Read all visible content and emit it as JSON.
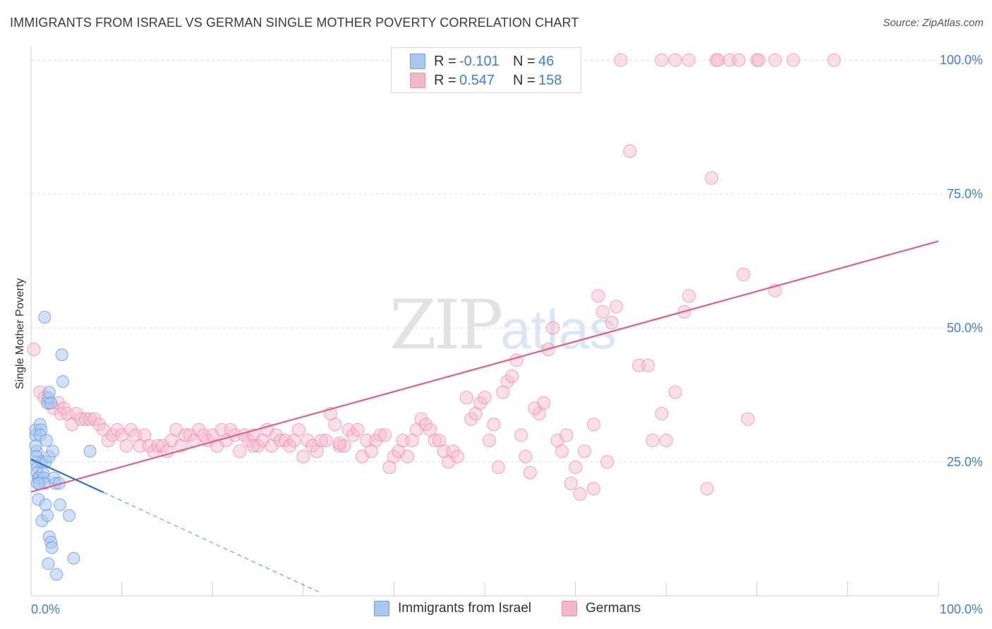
{
  "header": {
    "title": "IMMIGRANTS FROM ISRAEL VS GERMAN SINGLE MOTHER POVERTY CORRELATION CHART",
    "source": "Source: ZipAtlas.com"
  },
  "watermark": {
    "zip": "ZIP",
    "atlas": "atlas"
  },
  "legend": {
    "rows": [
      {
        "r_label": "R =",
        "r_value": "-0.101",
        "n_label": "N =",
        "n_value": "46",
        "color": "#a9c8f0"
      },
      {
        "r_label": "R =",
        "r_value": "0.547",
        "n_label": "N =",
        "n_value": "158",
        "color": "#f6b7c9"
      }
    ]
  },
  "bottom_legend": {
    "israel": "Immigrants from Israel",
    "germans": "Germans"
  },
  "colors": {
    "israel_fill": "#a9c8f0",
    "israel_stroke": "#6f9fe0",
    "israel_line": "#2f6fce",
    "germans_fill": "#f6b7c9",
    "germans_stroke": "#ee8fae",
    "germans_line": "#e0608a",
    "tick_text": "#3f7fd0",
    "grid": "#dddddd"
  },
  "chart_data": {
    "type": "scatter",
    "title": "IMMIGRANTS FROM ISRAEL VS GERMAN SINGLE MOTHER POVERTY CORRELATION CHART",
    "xlabel": "",
    "ylabel": "Single Mother Poverty",
    "xlim": [
      0,
      100
    ],
    "ylim": [
      0,
      102
    ],
    "x_tick_labels": [
      "0.0%",
      "100.0%"
    ],
    "y_ticks": [
      25,
      50,
      75,
      100
    ],
    "y_tick_labels": [
      "25.0%",
      "50.0%",
      "75.0%",
      "100.0%"
    ],
    "grid": true,
    "series": [
      {
        "name": "Immigrants from Israel",
        "points": [
          [
            0.5,
            30
          ],
          [
            0.5,
            31
          ],
          [
            0.6,
            27
          ],
          [
            0.6,
            25
          ],
          [
            0.7,
            24
          ],
          [
            0.7,
            23
          ],
          [
            0.8,
            22
          ],
          [
            0.9,
            22
          ],
          [
            0.5,
            28
          ],
          [
            0.6,
            26
          ],
          [
            0.7,
            21
          ],
          [
            1.0,
            32
          ],
          [
            1.1,
            31
          ],
          [
            1.0,
            30
          ],
          [
            1.2,
            25
          ],
          [
            1.3,
            23
          ],
          [
            1.4,
            22
          ],
          [
            1.5,
            21
          ],
          [
            1.6,
            25
          ],
          [
            1.7,
            29
          ],
          [
            1.8,
            36
          ],
          [
            1.9,
            37
          ],
          [
            2.0,
            38
          ],
          [
            2.2,
            36
          ],
          [
            1.5,
            52
          ],
          [
            2.0,
            26
          ],
          [
            2.4,
            27
          ],
          [
            2.5,
            22
          ],
          [
            2.7,
            21
          ],
          [
            3.1,
            21
          ],
          [
            0.8,
            18
          ],
          [
            1.2,
            14
          ],
          [
            1.6,
            17
          ],
          [
            1.8,
            15
          ],
          [
            2.0,
            11
          ],
          [
            2.2,
            10
          ],
          [
            2.3,
            9
          ],
          [
            1.9,
            6
          ],
          [
            2.8,
            4
          ],
          [
            3.2,
            17
          ],
          [
            3.4,
            45
          ],
          [
            3.5,
            40
          ],
          [
            4.2,
            15
          ],
          [
            4.7,
            7
          ],
          [
            6.5,
            27
          ],
          [
            0.9,
            21
          ]
        ],
        "trend": {
          "x0": 0,
          "y0": 25.5,
          "x1": 8,
          "y1": 19.3,
          "dash_to_x": 32,
          "dash_to_y": 0.5
        }
      },
      {
        "name": "Germans",
        "points": [
          [
            0.3,
            46
          ],
          [
            1.0,
            38
          ],
          [
            1.5,
            37
          ],
          [
            2.0,
            36
          ],
          [
            2.5,
            35
          ],
          [
            3.0,
            36
          ],
          [
            3.3,
            34
          ],
          [
            3.6,
            35
          ],
          [
            4.0,
            34
          ],
          [
            4.5,
            32
          ],
          [
            5.0,
            34
          ],
          [
            5.5,
            33
          ],
          [
            6.0,
            33
          ],
          [
            6.5,
            33
          ],
          [
            7.0,
            33
          ],
          [
            7.5,
            32
          ],
          [
            8.0,
            31
          ],
          [
            8.5,
            29
          ],
          [
            9.0,
            30
          ],
          [
            9.5,
            31
          ],
          [
            10.0,
            30
          ],
          [
            10.5,
            28
          ],
          [
            11.0,
            31
          ],
          [
            11.5,
            30
          ],
          [
            12.0,
            28
          ],
          [
            12.5,
            30
          ],
          [
            13.0,
            28
          ],
          [
            13.5,
            27
          ],
          [
            14.0,
            28
          ],
          [
            14.5,
            28
          ],
          [
            15.0,
            27
          ],
          [
            15.5,
            29
          ],
          [
            16.0,
            31
          ],
          [
            16.5,
            28
          ],
          [
            17.0,
            30
          ],
          [
            17.5,
            30
          ],
          [
            18.0,
            29
          ],
          [
            18.5,
            31
          ],
          [
            19.0,
            30
          ],
          [
            19.5,
            29
          ],
          [
            20.0,
            30
          ],
          [
            20.5,
            28
          ],
          [
            21.0,
            31
          ],
          [
            21.5,
            29
          ],
          [
            22.0,
            31
          ],
          [
            22.5,
            30
          ],
          [
            23.0,
            27
          ],
          [
            23.5,
            30
          ],
          [
            24.0,
            29
          ],
          [
            24.5,
            30
          ],
          [
            25.0,
            28
          ],
          [
            25.5,
            29
          ],
          [
            26.0,
            31
          ],
          [
            26.5,
            28
          ],
          [
            27.0,
            30
          ],
          [
            27.5,
            29
          ],
          [
            28.0,
            29
          ],
          [
            28.5,
            28
          ],
          [
            29.0,
            29
          ],
          [
            29.5,
            31
          ],
          [
            30.0,
            26
          ],
          [
            30.5,
            29
          ],
          [
            31.0,
            28
          ],
          [
            31.5,
            27
          ],
          [
            32.0,
            29
          ],
          [
            32.5,
            29
          ],
          [
            33.0,
            34
          ],
          [
            33.5,
            32
          ],
          [
            34.0,
            28
          ],
          [
            34.5,
            28
          ],
          [
            35.0,
            31
          ],
          [
            35.5,
            30
          ],
          [
            36.0,
            31
          ],
          [
            36.5,
            26
          ],
          [
            37.0,
            29
          ],
          [
            37.5,
            27
          ],
          [
            38.0,
            29
          ],
          [
            38.5,
            30
          ],
          [
            39.0,
            30
          ],
          [
            39.5,
            24
          ],
          [
            40.0,
            26
          ],
          [
            40.5,
            27
          ],
          [
            41.0,
            29
          ],
          [
            41.5,
            26
          ],
          [
            42.0,
            29
          ],
          [
            42.5,
            31
          ],
          [
            43.0,
            33
          ],
          [
            43.5,
            32
          ],
          [
            44.0,
            31
          ],
          [
            44.5,
            29
          ],
          [
            45.0,
            29
          ],
          [
            45.5,
            27
          ],
          [
            46.0,
            25
          ],
          [
            46.5,
            27
          ],
          [
            47.0,
            26
          ],
          [
            48.0,
            37
          ],
          [
            48.5,
            33
          ],
          [
            49.0,
            34
          ],
          [
            49.5,
            36
          ],
          [
            50.0,
            37
          ],
          [
            50.5,
            29
          ],
          [
            51.0,
            32
          ],
          [
            51.5,
            24
          ],
          [
            52.0,
            38
          ],
          [
            52.5,
            40
          ],
          [
            53.0,
            41
          ],
          [
            53.5,
            44
          ],
          [
            54.0,
            30
          ],
          [
            54.5,
            26
          ],
          [
            55.0,
            23
          ],
          [
            56.0,
            34
          ],
          [
            56.5,
            36
          ],
          [
            57.0,
            46
          ],
          [
            57.5,
            50
          ],
          [
            58.0,
            29
          ],
          [
            58.5,
            27
          ],
          [
            59.0,
            30
          ],
          [
            59.5,
            21
          ],
          [
            60.0,
            24
          ],
          [
            60.5,
            19
          ],
          [
            61.0,
            27
          ],
          [
            62.0,
            32
          ],
          [
            62.5,
            56
          ],
          [
            63.0,
            53
          ],
          [
            63.5,
            25
          ],
          [
            64.0,
            51
          ],
          [
            64.5,
            54
          ],
          [
            66.0,
            83
          ],
          [
            67.0,
            43
          ],
          [
            68.0,
            43
          ],
          [
            68.5,
            29
          ],
          [
            69.5,
            34
          ],
          [
            70.0,
            29
          ],
          [
            71.0,
            38
          ],
          [
            72.0,
            53
          ],
          [
            72.5,
            56
          ],
          [
            74.5,
            20
          ],
          [
            75.0,
            78
          ],
          [
            77.0,
            100
          ],
          [
            78.5,
            60
          ],
          [
            79.0,
            33
          ],
          [
            82.0,
            57
          ],
          [
            65.0,
            100
          ],
          [
            69.5,
            100
          ],
          [
            71.0,
            100
          ],
          [
            72.5,
            100
          ],
          [
            75.5,
            100
          ],
          [
            75.7,
            100
          ],
          [
            78.0,
            100
          ],
          [
            80.0,
            100
          ],
          [
            80.2,
            100
          ],
          [
            82.0,
            100
          ],
          [
            84.0,
            100
          ],
          [
            88.5,
            100
          ],
          [
            62.0,
            20
          ],
          [
            55.5,
            35
          ],
          [
            34.0,
            28.5
          ],
          [
            24.5,
            28
          ]
        ],
        "trend": {
          "x0": 0,
          "y0": 19.4,
          "x1": 100,
          "y1": 66.2
        }
      }
    ]
  }
}
